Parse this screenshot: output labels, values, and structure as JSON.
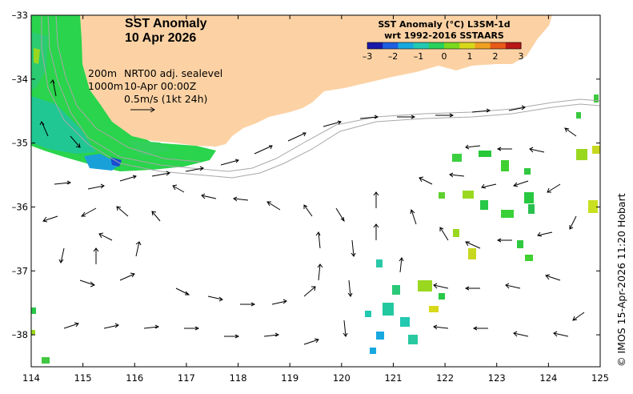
{
  "map": {
    "title_line1": "SST Anomaly",
    "title_line2": "10 Apr 2026",
    "legend_title_line1": "SST Anomaly (°C) L3SM-1d",
    "legend_title_line2": "wrt 1992-2016 SSTAARS",
    "legend_ticks": [
      "-3",
      "-2",
      "-1",
      "0",
      "1",
      "2",
      "3"
    ],
    "legend_colors": [
      "#1a1aa8",
      "#1f5fe0",
      "#18a8e0",
      "#22c8b0",
      "#28d25a",
      "#7ad81e",
      "#d8d81a",
      "#f0a020",
      "#e85a18",
      "#b81818"
    ],
    "info_depth1": "200m",
    "info_depth2": "1000m",
    "info_source": "NRT00 adj. sealevel",
    "info_time": "10-Apr 00:00Z",
    "info_scale": "0.5m/s (1kt 24h)",
    "credit": "© IMOS 15-Apr-2026 11:20 Hobart",
    "lat_ticks": [
      "-33",
      "-34",
      "-35",
      "-36",
      "-37",
      "-38"
    ],
    "lon_ticks": [
      "114",
      "115",
      "116",
      "117",
      "118",
      "119",
      "120",
      "121",
      "122",
      "123",
      "124",
      "125"
    ],
    "colors": {
      "land": "#fcd2a4",
      "ocean": "#ffffff",
      "isobath": "#a8a8a8",
      "arrow": "#000000"
    }
  }
}
